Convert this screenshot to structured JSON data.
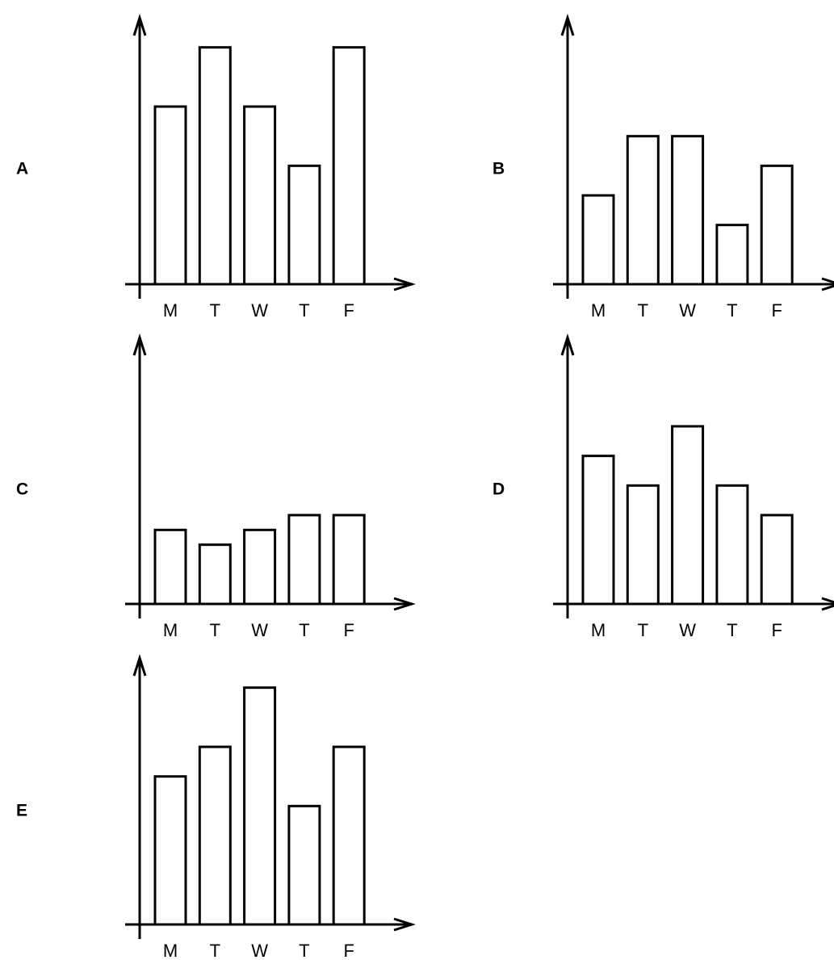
{
  "chart_data": [
    {
      "type": "bar",
      "label": "A",
      "categories": [
        "M",
        "T",
        "W",
        "T",
        "F"
      ],
      "values": [
        6,
        8,
        6,
        4,
        8
      ],
      "color": "#ffffff",
      "ylim": [
        0,
        9
      ]
    },
    {
      "type": "bar",
      "label": "B",
      "categories": [
        "M",
        "T",
        "W",
        "T",
        "F"
      ],
      "values": [
        3,
        5,
        5,
        2,
        4
      ],
      "color": "#ffffff",
      "ylim": [
        0,
        9
      ]
    },
    {
      "type": "bar",
      "label": "C",
      "categories": [
        "M",
        "T",
        "W",
        "T",
        "F"
      ],
      "values": [
        2.5,
        2,
        2.5,
        3,
        3
      ],
      "color": "#ffffff",
      "ylim": [
        0,
        9
      ]
    },
    {
      "type": "bar",
      "label": "D",
      "categories": [
        "M",
        "T",
        "W",
        "T",
        "F"
      ],
      "values": [
        5,
        4,
        6,
        4,
        3
      ],
      "color": "#ffffff",
      "ylim": [
        0,
        9
      ]
    },
    {
      "type": "bar",
      "label": "E",
      "categories": [
        "M",
        "T",
        "W",
        "T",
        "F"
      ],
      "values": [
        5,
        6,
        8,
        4,
        6
      ],
      "color": "#ffffff",
      "ylim": [
        0,
        9
      ]
    }
  ]
}
